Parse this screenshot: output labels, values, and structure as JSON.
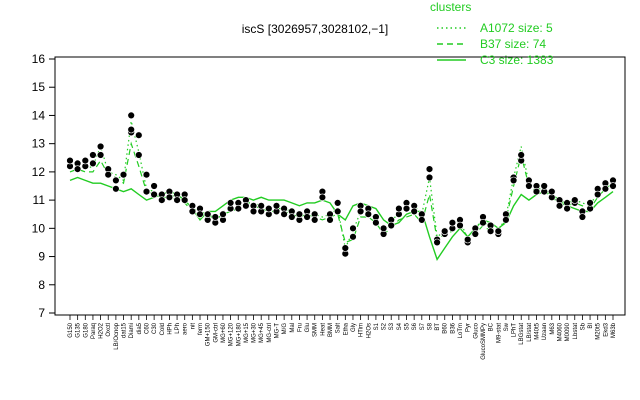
{
  "chart_data": {
    "type": "line",
    "title": "iscS [3026957,3028102,−1]",
    "xlabel": "",
    "ylabel": "",
    "ylim": [
      7,
      16
    ],
    "y_ticks": [
      7,
      8,
      9,
      10,
      11,
      12,
      13,
      14,
      15,
      16
    ],
    "x_tick_labels": [
      "G150",
      "G135",
      "G180",
      "Paraq",
      "H2O2",
      "Oxctl",
      "LB/Ocnop",
      "dat15",
      "Diami",
      "dia5",
      "C60",
      "C30",
      "Cold",
      "HPh",
      "LPh",
      "aero",
      "nit",
      "ferm",
      "GM+150",
      "GM-ctrl",
      "MG+60",
      "MG+120",
      "MG+180",
      "MG+15",
      "MG+30",
      "MG+45",
      "MG-ctrl",
      "MG-T",
      "M/G",
      "Mal",
      "Fru",
      "Glu",
      "SMM",
      "Heat",
      "BMM",
      "Salt",
      "Etha",
      "Gly",
      "HTim",
      "H2Os",
      "S1",
      "S2",
      "S3",
      "S4",
      "S5",
      "S6",
      "S7",
      "S8",
      "BT",
      "B60",
      "B36",
      "LoTm",
      "Pyr",
      "Gluco",
      "GlucoSMMPy",
      "BC",
      "M9-stat",
      "Sw",
      "LPhT",
      "LBGstat",
      "LB/stat",
      "M40t5",
      "Uzaan",
      "M63",
      "M4060",
      "M0090",
      "Lbstat",
      "Sb",
      "BI",
      "M20t5",
      "Ekd3",
      "M63b"
    ],
    "legend": {
      "title": "clusters",
      "position": "top-right",
      "entries": [
        {
          "label": "A1072 size: 5",
          "style": "dotted"
        },
        {
          "label": "B37 size: 74",
          "style": "dashed"
        },
        {
          "label": "C3 size: 1383",
          "style": "solid"
        }
      ]
    },
    "colors": {
      "cluster": "#22cc22",
      "points": "#000000",
      "axis": "#000000"
    },
    "series": [
      {
        "name": "A1072 size: 5",
        "style": "dotted",
        "values": [
          12.2,
          12.3,
          12.1,
          12.2,
          12.9,
          12.0,
          11.9,
          11.7,
          13.8,
          12.7,
          11.4,
          11.3,
          11.2,
          11.2,
          11.1,
          11.0,
          10.7,
          10.6,
          10.5,
          10.4,
          10.6,
          10.7,
          10.8,
          10.9,
          10.9,
          10.8,
          10.7,
          10.7,
          10.7,
          10.6,
          10.5,
          10.6,
          10.5,
          10.4,
          10.5,
          10.7,
          9.3,
          9.9,
          10.6,
          10.6,
          10.3,
          9.9,
          10.2,
          10.6,
          10.7,
          10.8,
          10.5,
          11.8,
          9.7,
          9.9,
          10.1,
          10.3,
          9.6,
          9.9,
          10.3,
          10.0,
          9.9,
          10.4,
          11.8,
          12.9,
          11.6,
          11.4,
          11.4,
          11.2,
          11.0,
          10.9,
          11.0,
          10.9,
          10.8,
          11.3,
          11.6,
          11.7
        ]
      },
      {
        "name": "B37 size: 74",
        "style": "dashed",
        "values": [
          12.0,
          12.1,
          12.0,
          12.0,
          12.4,
          11.9,
          11.8,
          11.6,
          13.0,
          12.2,
          11.3,
          11.2,
          11.1,
          11.1,
          11.0,
          10.9,
          10.6,
          10.5,
          10.5,
          10.3,
          10.5,
          10.6,
          10.7,
          10.8,
          10.8,
          10.7,
          10.6,
          10.6,
          10.6,
          10.5,
          10.4,
          10.5,
          10.4,
          10.3,
          10.4,
          10.5,
          9.5,
          9.6,
          10.4,
          10.4,
          10.2,
          9.8,
          10.0,
          10.3,
          10.4,
          10.5,
          10.2,
          11.2,
          9.6,
          9.8,
          9.9,
          10.1,
          9.7,
          9.8,
          10.1,
          9.9,
          9.9,
          10.3,
          11.5,
          12.6,
          11.5,
          11.3,
          11.3,
          11.1,
          10.9,
          10.8,
          10.9,
          10.8,
          10.7,
          11.1,
          11.4,
          11.6
        ]
      },
      {
        "name": "C3 size: 1383",
        "style": "solid",
        "values": [
          11.7,
          11.8,
          11.7,
          11.6,
          11.6,
          11.5,
          11.4,
          11.3,
          11.4,
          11.2,
          11.0,
          11.1,
          11.2,
          11.3,
          11.2,
          11.0,
          10.7,
          10.3,
          10.6,
          10.6,
          10.8,
          11.0,
          11.1,
          11.1,
          11.0,
          11.1,
          11.0,
          11.0,
          11.0,
          10.9,
          10.8,
          10.9,
          10.9,
          11.0,
          10.9,
          10.5,
          10.3,
          10.8,
          10.9,
          10.8,
          10.7,
          10.3,
          10.1,
          10.2,
          10.5,
          10.6,
          10.6,
          9.7,
          8.9,
          9.3,
          9.7,
          10.0,
          9.7,
          10.0,
          10.3,
          10.2,
          10.0,
          10.2,
          10.8,
          11.2,
          11.0,
          11.2,
          11.3,
          11.2,
          11.0,
          10.8,
          10.7,
          10.6,
          10.6,
          10.9,
          11.1,
          11.3
        ]
      }
    ],
    "points": [
      {
        "x": 0,
        "y": 12.2
      },
      {
        "x": 0,
        "y": 12.4
      },
      {
        "x": 1,
        "y": 12.3
      },
      {
        "x": 1,
        "y": 12.1
      },
      {
        "x": 2,
        "y": 12.2
      },
      {
        "x": 2,
        "y": 12.4
      },
      {
        "x": 3,
        "y": 12.3
      },
      {
        "x": 3,
        "y": 12.6
      },
      {
        "x": 4,
        "y": 12.9
      },
      {
        "x": 4,
        "y": 12.6
      },
      {
        "x": 5,
        "y": 12.1
      },
      {
        "x": 5,
        "y": 11.9
      },
      {
        "x": 6,
        "y": 11.7
      },
      {
        "x": 6,
        "y": 11.4
      },
      {
        "x": 7,
        "y": 11.9
      },
      {
        "x": 8,
        "y": 13.4
      },
      {
        "x": 8,
        "y": 14.0
      },
      {
        "x": 8,
        "y": 13.5
      },
      {
        "x": 9,
        "y": 13.3
      },
      {
        "x": 9,
        "y": 12.6
      },
      {
        "x": 10,
        "y": 11.9
      },
      {
        "x": 10,
        "y": 11.3
      },
      {
        "x": 11,
        "y": 11.5
      },
      {
        "x": 11,
        "y": 11.2
      },
      {
        "x": 12,
        "y": 11.2
      },
      {
        "x": 12,
        "y": 11.0
      },
      {
        "x": 13,
        "y": 11.3
      },
      {
        "x": 13,
        "y": 11.1
      },
      {
        "x": 14,
        "y": 11.2
      },
      {
        "x": 14,
        "y": 11.0
      },
      {
        "x": 15,
        "y": 11.2
      },
      {
        "x": 15,
        "y": 11.0
      },
      {
        "x": 16,
        "y": 10.8
      },
      {
        "x": 16,
        "y": 10.6
      },
      {
        "x": 17,
        "y": 10.7
      },
      {
        "x": 17,
        "y": 10.5
      },
      {
        "x": 18,
        "y": 10.3
      },
      {
        "x": 18,
        "y": 10.5
      },
      {
        "x": 19,
        "y": 10.2
      },
      {
        "x": 19,
        "y": 10.4
      },
      {
        "x": 20,
        "y": 10.3
      },
      {
        "x": 20,
        "y": 10.5
      },
      {
        "x": 21,
        "y": 10.7
      },
      {
        "x": 21,
        "y": 10.9
      },
      {
        "x": 22,
        "y": 10.9
      },
      {
        "x": 22,
        "y": 10.7
      },
      {
        "x": 23,
        "y": 11.0
      },
      {
        "x": 23,
        "y": 10.8
      },
      {
        "x": 24,
        "y": 10.8
      },
      {
        "x": 24,
        "y": 10.6
      },
      {
        "x": 25,
        "y": 10.6
      },
      {
        "x": 25,
        "y": 10.8
      },
      {
        "x": 26,
        "y": 10.5
      },
      {
        "x": 26,
        "y": 10.7
      },
      {
        "x": 27,
        "y": 10.6
      },
      {
        "x": 27,
        "y": 10.8
      },
      {
        "x": 28,
        "y": 10.7
      },
      {
        "x": 28,
        "y": 10.5
      },
      {
        "x": 29,
        "y": 10.6
      },
      {
        "x": 29,
        "y": 10.4
      },
      {
        "x": 30,
        "y": 10.3
      },
      {
        "x": 30,
        "y": 10.5
      },
      {
        "x": 31,
        "y": 10.6
      },
      {
        "x": 31,
        "y": 10.4
      },
      {
        "x": 32,
        "y": 10.5
      },
      {
        "x": 32,
        "y": 10.3
      },
      {
        "x": 33,
        "y": 11.3
      },
      {
        "x": 33,
        "y": 11.1
      },
      {
        "x": 34,
        "y": 10.5
      },
      {
        "x": 34,
        "y": 10.3
      },
      {
        "x": 35,
        "y": 10.9
      },
      {
        "x": 35,
        "y": 10.6
      },
      {
        "x": 36,
        "y": 9.1
      },
      {
        "x": 36,
        "y": 9.3
      },
      {
        "x": 37,
        "y": 9.7
      },
      {
        "x": 37,
        "y": 10.0
      },
      {
        "x": 38,
        "y": 10.8
      },
      {
        "x": 38,
        "y": 10.6
      },
      {
        "x": 39,
        "y": 10.7
      },
      {
        "x": 39,
        "y": 10.5
      },
      {
        "x": 40,
        "y": 10.4
      },
      {
        "x": 40,
        "y": 10.2
      },
      {
        "x": 41,
        "y": 9.8
      },
      {
        "x": 41,
        "y": 10.0
      },
      {
        "x": 42,
        "y": 10.3
      },
      {
        "x": 42,
        "y": 10.1
      },
      {
        "x": 43,
        "y": 10.5
      },
      {
        "x": 43,
        "y": 10.7
      },
      {
        "x": 44,
        "y": 10.9
      },
      {
        "x": 44,
        "y": 10.7
      },
      {
        "x": 45,
        "y": 10.8
      },
      {
        "x": 45,
        "y": 10.6
      },
      {
        "x": 46,
        "y": 10.5
      },
      {
        "x": 46,
        "y": 10.3
      },
      {
        "x": 47,
        "y": 11.8
      },
      {
        "x": 47,
        "y": 12.1
      },
      {
        "x": 48,
        "y": 9.6
      },
      {
        "x": 48,
        "y": 9.5
      },
      {
        "x": 49,
        "y": 9.8
      },
      {
        "x": 49,
        "y": 9.9
      },
      {
        "x": 50,
        "y": 10.0
      },
      {
        "x": 50,
        "y": 10.2
      },
      {
        "x": 51,
        "y": 10.3
      },
      {
        "x": 51,
        "y": 10.1
      },
      {
        "x": 52,
        "y": 9.5
      },
      {
        "x": 52,
        "y": 9.6
      },
      {
        "x": 53,
        "y": 10.0
      },
      {
        "x": 53,
        "y": 9.8
      },
      {
        "x": 54,
        "y": 10.4
      },
      {
        "x": 54,
        "y": 10.2
      },
      {
        "x": 55,
        "y": 10.1
      },
      {
        "x": 55,
        "y": 9.9
      },
      {
        "x": 56,
        "y": 9.8
      },
      {
        "x": 56,
        "y": 9.9
      },
      {
        "x": 57,
        "y": 10.5
      },
      {
        "x": 57,
        "y": 10.3
      },
      {
        "x": 58,
        "y": 11.8
      },
      {
        "x": 58,
        "y": 11.7
      },
      {
        "x": 59,
        "y": 12.4
      },
      {
        "x": 59,
        "y": 12.6
      },
      {
        "x": 60,
        "y": 11.7
      },
      {
        "x": 60,
        "y": 11.5
      },
      {
        "x": 61,
        "y": 11.5
      },
      {
        "x": 61,
        "y": 11.3
      },
      {
        "x": 62,
        "y": 11.3
      },
      {
        "x": 62,
        "y": 11.5
      },
      {
        "x": 63,
        "y": 11.1
      },
      {
        "x": 63,
        "y": 11.3
      },
      {
        "x": 64,
        "y": 11.0
      },
      {
        "x": 64,
        "y": 10.8
      },
      {
        "x": 65,
        "y": 10.9
      },
      {
        "x": 65,
        "y": 10.7
      },
      {
        "x": 66,
        "y": 10.9
      },
      {
        "x": 66,
        "y": 11.0
      },
      {
        "x": 67,
        "y": 10.6
      },
      {
        "x": 67,
        "y": 10.4
      },
      {
        "x": 68,
        "y": 10.7
      },
      {
        "x": 68,
        "y": 10.9
      },
      {
        "x": 69,
        "y": 11.4
      },
      {
        "x": 69,
        "y": 11.2
      },
      {
        "x": 70,
        "y": 11.6
      },
      {
        "x": 70,
        "y": 11.4
      },
      {
        "x": 71,
        "y": 11.7
      },
      {
        "x": 71,
        "y": 11.5
      }
    ]
  }
}
